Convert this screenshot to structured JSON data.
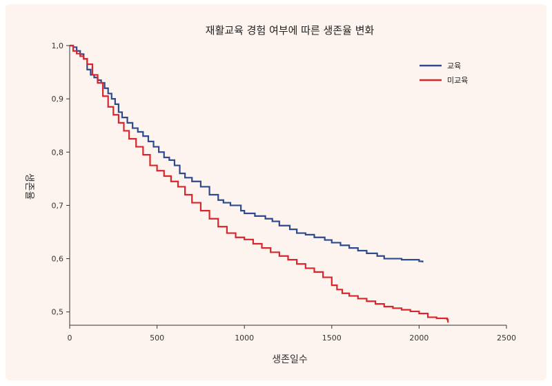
{
  "chart_data": {
    "type": "line",
    "title": "재활교육 경험 여부에 따른 생존율 변화",
    "xlabel": "생존일수",
    "ylabel": "생존율",
    "xlim": [
      0,
      2500
    ],
    "ylim": [
      0.475,
      1.0
    ],
    "x_ticks": [
      0,
      500,
      1000,
      1500,
      2000,
      2500
    ],
    "y_ticks": [
      0.5,
      0.6,
      0.7,
      0.8,
      0.9,
      1.0
    ],
    "x_tick_labels": [
      "0",
      "500",
      "1000",
      "1500",
      "2000",
      "2500"
    ],
    "y_tick_labels": [
      "0,5",
      "0,6",
      "0,7",
      "0,8",
      "0,9",
      "1,0"
    ],
    "legend_position": "top-right",
    "grid": false,
    "series": [
      {
        "name": "교육",
        "color": "#2c4a8c",
        "x": [
          0,
          20,
          40,
          60,
          80,
          100,
          120,
          140,
          160,
          180,
          200,
          220,
          240,
          260,
          280,
          300,
          330,
          360,
          390,
          420,
          450,
          480,
          510,
          540,
          570,
          600,
          630,
          660,
          700,
          750,
          800,
          850,
          880,
          920,
          980,
          1000,
          1060,
          1120,
          1160,
          1200,
          1260,
          1300,
          1350,
          1400,
          1460,
          1500,
          1550,
          1600,
          1650,
          1700,
          1760,
          1800,
          1900,
          2000,
          2020
        ],
        "y": [
          1.0,
          0.997,
          0.99,
          0.984,
          0.975,
          0.955,
          0.945,
          0.94,
          0.935,
          0.93,
          0.92,
          0.91,
          0.9,
          0.89,
          0.875,
          0.865,
          0.855,
          0.845,
          0.838,
          0.83,
          0.82,
          0.81,
          0.8,
          0.79,
          0.785,
          0.775,
          0.76,
          0.752,
          0.745,
          0.735,
          0.72,
          0.71,
          0.705,
          0.7,
          0.69,
          0.685,
          0.68,
          0.675,
          0.67,
          0.662,
          0.655,
          0.648,
          0.645,
          0.64,
          0.635,
          0.63,
          0.625,
          0.62,
          0.615,
          0.61,
          0.605,
          0.6,
          0.598,
          0.595,
          0.593
        ]
      },
      {
        "name": "미교육",
        "color": "#d9262c",
        "x": [
          0,
          20,
          40,
          60,
          80,
          100,
          130,
          160,
          190,
          220,
          250,
          280,
          310,
          340,
          380,
          420,
          460,
          500,
          540,
          580,
          620,
          660,
          700,
          750,
          800,
          850,
          900,
          950,
          1000,
          1050,
          1100,
          1150,
          1200,
          1250,
          1300,
          1350,
          1400,
          1450,
          1500,
          1530,
          1560,
          1600,
          1650,
          1700,
          1750,
          1800,
          1850,
          1900,
          1950,
          2000,
          2050,
          2100,
          2160,
          2165
        ],
        "y": [
          1.0,
          0.99,
          0.985,
          0.98,
          0.975,
          0.965,
          0.945,
          0.93,
          0.905,
          0.885,
          0.87,
          0.855,
          0.84,
          0.825,
          0.81,
          0.795,
          0.775,
          0.765,
          0.755,
          0.745,
          0.735,
          0.72,
          0.705,
          0.69,
          0.675,
          0.66,
          0.648,
          0.64,
          0.636,
          0.628,
          0.62,
          0.612,
          0.605,
          0.598,
          0.59,
          0.582,
          0.575,
          0.565,
          0.55,
          0.542,
          0.535,
          0.53,
          0.525,
          0.52,
          0.515,
          0.51,
          0.507,
          0.504,
          0.501,
          0.497,
          0.49,
          0.488,
          0.486,
          0.48
        ]
      }
    ]
  }
}
